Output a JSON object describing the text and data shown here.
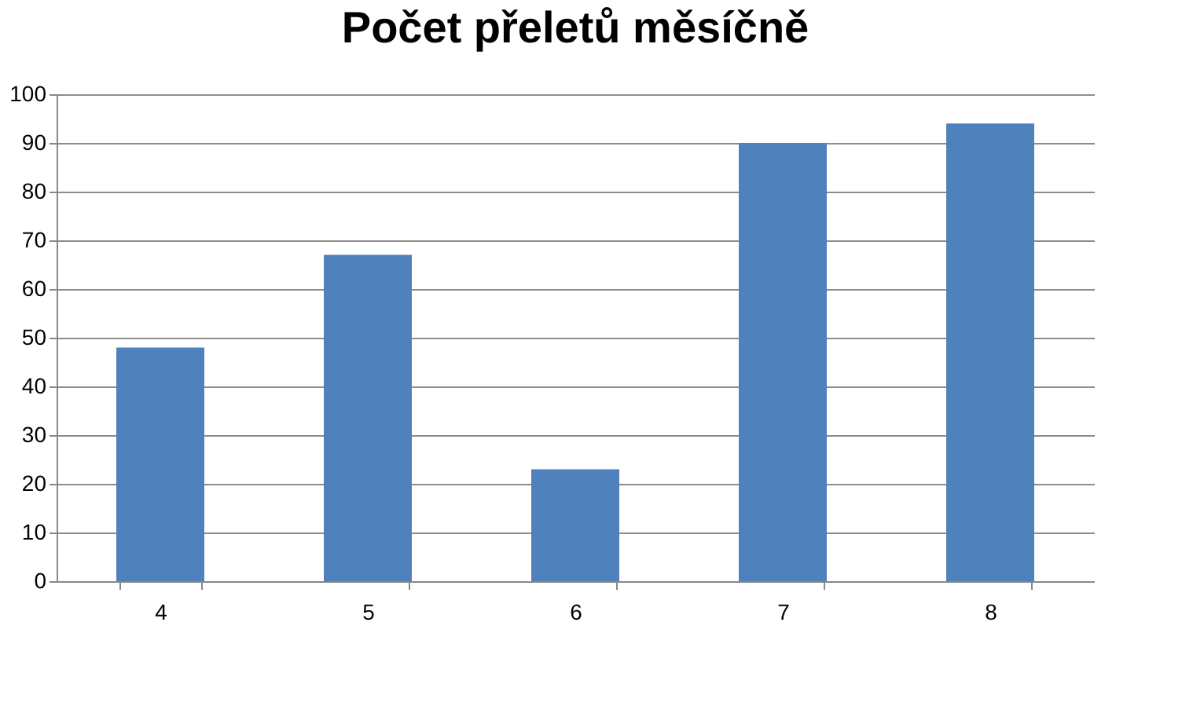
{
  "chart_data": {
    "type": "bar",
    "title": "Počet přeletů měsíčně",
    "categories": [
      "4",
      "5",
      "6",
      "7",
      "8"
    ],
    "values": [
      48,
      67,
      23,
      90,
      94
    ],
    "color": "#4f81bd",
    "ylim": [
      0,
      100
    ],
    "yticks": [
      0,
      10,
      20,
      30,
      40,
      50,
      60,
      70,
      80,
      90,
      100
    ],
    "grid": "y"
  }
}
